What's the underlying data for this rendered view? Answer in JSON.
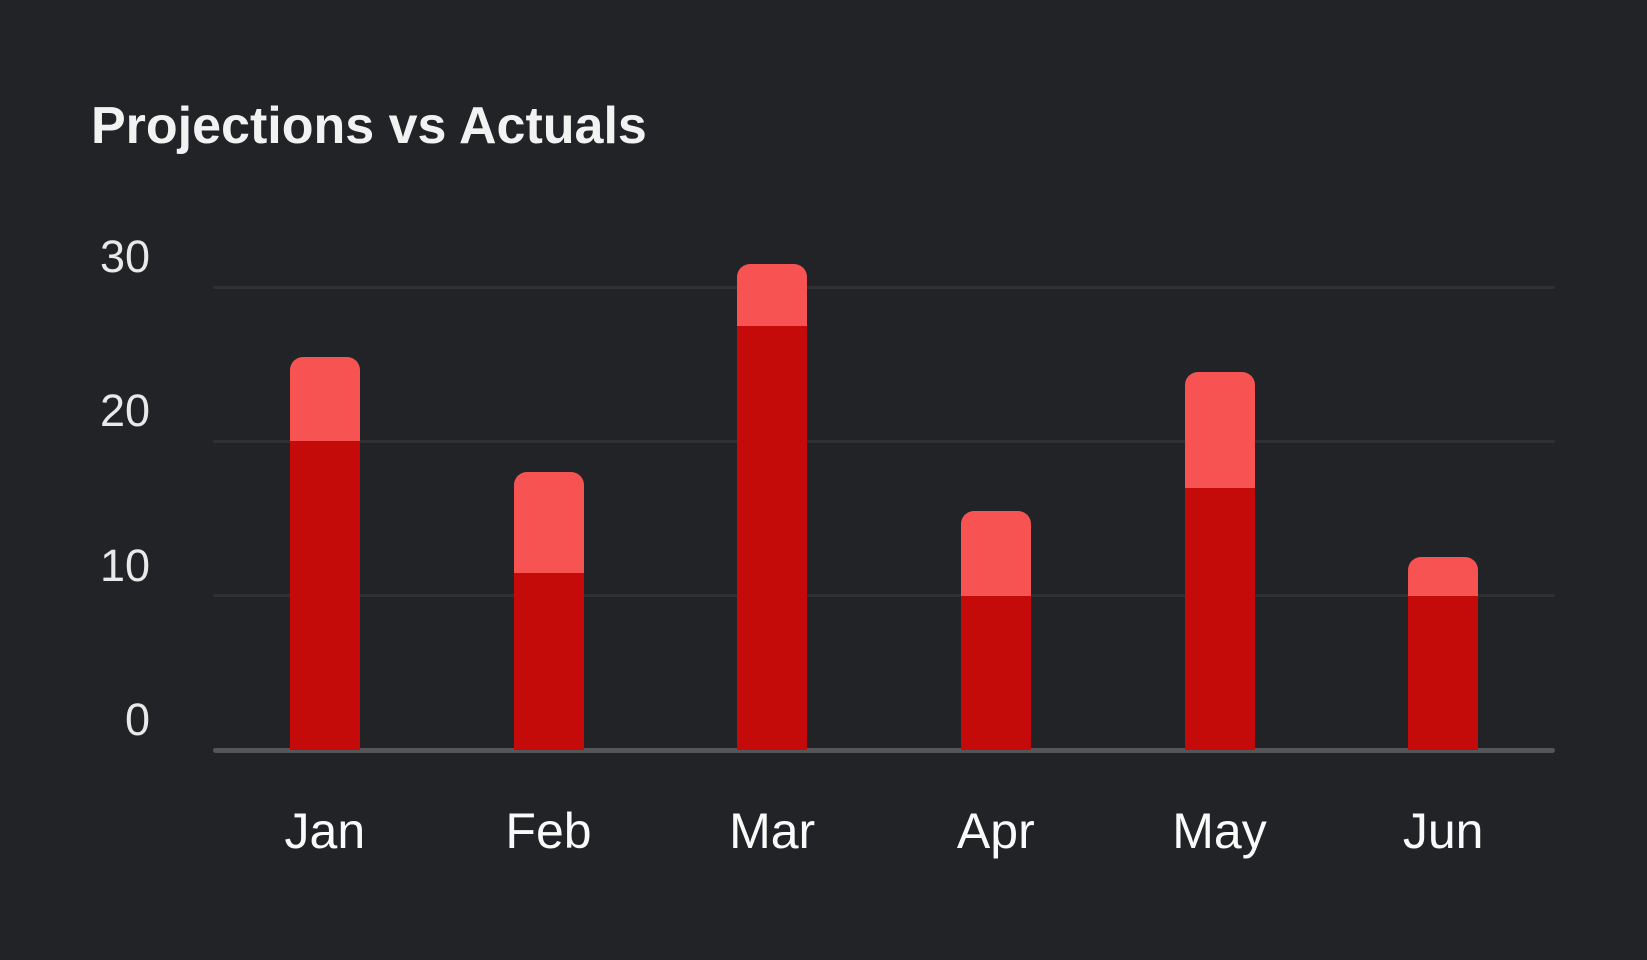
{
  "title": "Projections vs Actuals",
  "chart_data": {
    "type": "bar",
    "subtype": "stacked-overlay",
    "description": "Dark red bars are Actuals drawn over light red bars whose full height is the Projection total",
    "title": "Projections vs Actuals",
    "xlabel": "",
    "ylabel": "",
    "categories": [
      "Jan",
      "Feb",
      "Mar",
      "Apr",
      "May",
      "Jun"
    ],
    "series": [
      {
        "name": "Projections",
        "values": [
          25.5,
          18,
          31.5,
          15.5,
          24.5,
          12.5
        ],
        "color": "#f65352"
      },
      {
        "name": "Actuals",
        "values": [
          20,
          11.5,
          27.5,
          10,
          17,
          10
        ],
        "color": "#c50a0a"
      }
    ],
    "y_ticks": [
      0,
      10,
      20,
      30
    ],
    "y_tick_labels": [
      "0",
      "10",
      "20",
      "30"
    ],
    "ylim": [
      0,
      32
    ],
    "grid": "horizontal",
    "legend": "none"
  },
  "colors": {
    "background": "#222326",
    "grid": "#2f3033",
    "axis": "#55565a",
    "title_text": "#f2f2f2",
    "tick_text": "#e9e9e9",
    "month_text": "#fafafa",
    "bar_projection": "#f65352",
    "bar_actual": "#c50a0a"
  }
}
